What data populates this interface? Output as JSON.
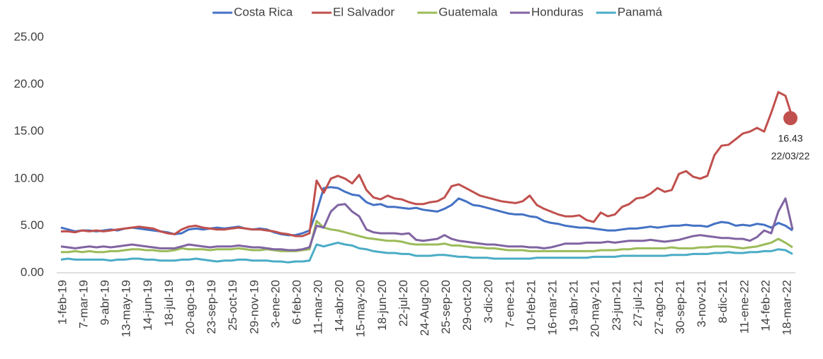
{
  "chart_data": {
    "type": "line",
    "categories": [
      "1-feb-19",
      null,
      null,
      "7-mar-19",
      null,
      null,
      "9-abr-19",
      null,
      null,
      "13-may-19",
      null,
      null,
      "14-jun-19",
      null,
      null,
      "18-jul-19",
      null,
      null,
      "20-ago-19",
      null,
      null,
      "23-sep-19",
      null,
      null,
      "25-oct-19",
      null,
      null,
      "29-nov-19",
      null,
      null,
      "3-ene-20",
      null,
      null,
      "6-feb-20",
      null,
      null,
      "11-mar-20",
      null,
      null,
      "14-abr-20",
      null,
      null,
      "15-may-20",
      null,
      null,
      "18-jun-20",
      null,
      null,
      "22-jul-20",
      null,
      null,
      "24-Aug-20",
      null,
      null,
      "25-sep-20",
      null,
      null,
      "29-oct-20",
      null,
      null,
      "3-dic-20",
      null,
      null,
      "7-ene-21",
      null,
      null,
      "10-feb-21",
      null,
      null,
      "16-mar-21",
      null,
      null,
      "19-abr-21",
      null,
      null,
      "20-may-21",
      null,
      null,
      "23-jun-21",
      null,
      null,
      "27-jul-21",
      null,
      null,
      "27-ago-21",
      null,
      null,
      "30-sep-21",
      null,
      null,
      "3-nov-21",
      null,
      null,
      "8-dic-21",
      null,
      null,
      "11-ene-22",
      null,
      null,
      "14-feb-22",
      null,
      null,
      "18-mar-22",
      null
    ],
    "series": [
      {
        "name": "Costa Rica",
        "color": "#4472c4",
        "values": [
          4.8,
          4.6,
          4.4,
          4.5,
          4.5,
          4.4,
          4.5,
          4.6,
          4.5,
          4.7,
          4.8,
          4.7,
          4.6,
          4.5,
          4.4,
          4.3,
          4.1,
          4.2,
          4.6,
          4.7,
          4.6,
          4.7,
          4.8,
          4.7,
          4.8,
          4.9,
          4.7,
          4.6,
          4.7,
          4.6,
          4.3,
          4.1,
          4.0,
          4.0,
          4.2,
          4.5,
          6.5,
          9.0,
          9.1,
          9.0,
          8.6,
          8.3,
          8.2,
          7.5,
          7.2,
          7.3,
          7.0,
          7.0,
          6.9,
          6.8,
          6.9,
          6.7,
          6.6,
          6.5,
          6.8,
          7.2,
          7.9,
          7.6,
          7.2,
          7.1,
          6.9,
          6.7,
          6.5,
          6.3,
          6.2,
          6.2,
          6.0,
          5.9,
          5.5,
          5.3,
          5.2,
          5.0,
          4.9,
          4.8,
          4.8,
          4.7,
          4.6,
          4.5,
          4.5,
          4.6,
          4.7,
          4.7,
          4.8,
          4.9,
          4.8,
          4.9,
          5.0,
          5.0,
          5.1,
          5.0,
          5.0,
          4.9,
          5.2,
          5.4,
          5.3,
          5.0,
          5.1,
          5.0,
          5.2,
          5.1,
          4.8,
          5.3,
          5.0,
          4.5
        ]
      },
      {
        "name": "El Salvador",
        "color": "#c0504d",
        "values": [
          4.4,
          4.4,
          4.3,
          4.5,
          4.4,
          4.5,
          4.4,
          4.5,
          4.6,
          4.7,
          4.8,
          4.9,
          4.8,
          4.7,
          4.4,
          4.2,
          4.1,
          4.6,
          4.9,
          5.0,
          4.8,
          4.7,
          4.6,
          4.6,
          4.7,
          4.8,
          4.7,
          4.6,
          4.6,
          4.5,
          4.4,
          4.2,
          4.1,
          3.9,
          3.9,
          4.2,
          9.8,
          8.5,
          10.0,
          10.3,
          10.0,
          9.5,
          10.4,
          8.8,
          8.0,
          7.8,
          8.2,
          7.9,
          7.8,
          7.5,
          7.3,
          7.3,
          7.5,
          7.6,
          8.0,
          9.2,
          9.4,
          9.0,
          8.6,
          8.2,
          8.0,
          7.8,
          7.6,
          7.5,
          7.4,
          7.6,
          8.2,
          7.2,
          6.8,
          6.5,
          6.2,
          6.0,
          6.0,
          6.1,
          5.6,
          5.4,
          6.4,
          6.0,
          6.2,
          7.0,
          7.3,
          7.9,
          8.0,
          8.4,
          9.0,
          8.6,
          8.8,
          10.5,
          10.8,
          10.2,
          10.0,
          10.3,
          12.5,
          13.5,
          13.6,
          14.2,
          14.8,
          15.0,
          15.4,
          15.0,
          17.0,
          19.2,
          18.8,
          16.43
        ]
      },
      {
        "name": "Guatemala",
        "color": "#9bbb59",
        "values": [
          2.2,
          2.2,
          2.3,
          2.2,
          2.3,
          2.2,
          2.2,
          2.3,
          2.3,
          2.4,
          2.5,
          2.5,
          2.4,
          2.4,
          2.3,
          2.3,
          2.4,
          2.6,
          2.5,
          2.5,
          2.5,
          2.4,
          2.5,
          2.5,
          2.5,
          2.6,
          2.5,
          2.4,
          2.4,
          2.5,
          2.4,
          2.3,
          2.3,
          2.3,
          2.4,
          2.5,
          5.5,
          4.8,
          4.6,
          4.5,
          4.3,
          4.1,
          3.9,
          3.7,
          3.6,
          3.5,
          3.4,
          3.4,
          3.3,
          3.1,
          3.0,
          3.0,
          3.0,
          3.0,
          3.1,
          2.9,
          2.9,
          2.8,
          2.7,
          2.7,
          2.6,
          2.6,
          2.5,
          2.4,
          2.4,
          2.4,
          2.3,
          2.3,
          2.3,
          2.3,
          2.3,
          2.3,
          2.3,
          2.3,
          2.3,
          2.3,
          2.4,
          2.4,
          2.4,
          2.5,
          2.5,
          2.6,
          2.6,
          2.6,
          2.6,
          2.6,
          2.7,
          2.6,
          2.6,
          2.6,
          2.7,
          2.7,
          2.8,
          2.8,
          2.8,
          2.7,
          2.6,
          2.7,
          2.8,
          3.0,
          3.2,
          3.6,
          3.2,
          2.7
        ]
      },
      {
        "name": "Honduras",
        "color": "#8064a2",
        "values": [
          2.8,
          2.7,
          2.6,
          2.7,
          2.8,
          2.7,
          2.8,
          2.7,
          2.8,
          2.9,
          3.0,
          2.9,
          2.8,
          2.7,
          2.6,
          2.6,
          2.6,
          2.8,
          3.0,
          2.9,
          2.8,
          2.7,
          2.8,
          2.8,
          2.8,
          2.9,
          2.8,
          2.7,
          2.7,
          2.6,
          2.5,
          2.5,
          2.4,
          2.4,
          2.5,
          2.7,
          5.0,
          4.8,
          6.5,
          7.2,
          7.3,
          6.5,
          6.0,
          4.6,
          4.3,
          4.2,
          4.2,
          4.2,
          4.1,
          4.2,
          3.5,
          3.4,
          3.5,
          3.6,
          4.0,
          3.6,
          3.4,
          3.3,
          3.2,
          3.1,
          3.0,
          3.0,
          2.9,
          2.8,
          2.8,
          2.8,
          2.7,
          2.7,
          2.6,
          2.7,
          2.9,
          3.1,
          3.1,
          3.1,
          3.2,
          3.2,
          3.2,
          3.3,
          3.2,
          3.3,
          3.4,
          3.4,
          3.4,
          3.5,
          3.4,
          3.3,
          3.4,
          3.5,
          3.7,
          3.9,
          4.0,
          3.9,
          3.8,
          3.7,
          3.7,
          3.6,
          3.6,
          3.4,
          3.8,
          4.5,
          4.2,
          6.5,
          7.9,
          4.6
        ]
      },
      {
        "name": "Panamá",
        "color": "#4bacc6",
        "values": [
          1.4,
          1.5,
          1.4,
          1.4,
          1.4,
          1.4,
          1.4,
          1.3,
          1.4,
          1.4,
          1.5,
          1.5,
          1.4,
          1.4,
          1.3,
          1.3,
          1.3,
          1.4,
          1.4,
          1.5,
          1.4,
          1.3,
          1.2,
          1.3,
          1.3,
          1.4,
          1.4,
          1.3,
          1.3,
          1.3,
          1.2,
          1.2,
          1.1,
          1.2,
          1.2,
          1.3,
          3.0,
          2.8,
          3.0,
          3.2,
          3.0,
          2.9,
          2.6,
          2.5,
          2.3,
          2.2,
          2.1,
          2.1,
          2.0,
          2.0,
          1.8,
          1.8,
          1.8,
          1.9,
          1.9,
          1.8,
          1.7,
          1.7,
          1.6,
          1.6,
          1.6,
          1.5,
          1.5,
          1.5,
          1.5,
          1.5,
          1.5,
          1.6,
          1.6,
          1.6,
          1.6,
          1.6,
          1.6,
          1.6,
          1.6,
          1.7,
          1.7,
          1.7,
          1.7,
          1.8,
          1.8,
          1.8,
          1.8,
          1.8,
          1.8,
          1.8,
          1.9,
          1.9,
          1.9,
          2.0,
          2.0,
          2.0,
          2.1,
          2.1,
          2.2,
          2.1,
          2.1,
          2.2,
          2.2,
          2.3,
          2.3,
          2.5,
          2.4,
          2.0
        ]
      }
    ],
    "ylim": [
      0,
      25
    ],
    "yticks": [
      {
        "value": 0,
        "label": "0.00"
      },
      {
        "value": 5,
        "label": "5.00"
      },
      {
        "value": 10,
        "label": "10.00"
      },
      {
        "value": 15,
        "label": "15.00"
      },
      {
        "value": 20,
        "label": "20.00"
      },
      {
        "value": 25,
        "label": "25.00"
      }
    ],
    "grid": false,
    "legend": "top",
    "annotation": {
      "value": 16.43,
      "date": "22/03/22"
    }
  }
}
